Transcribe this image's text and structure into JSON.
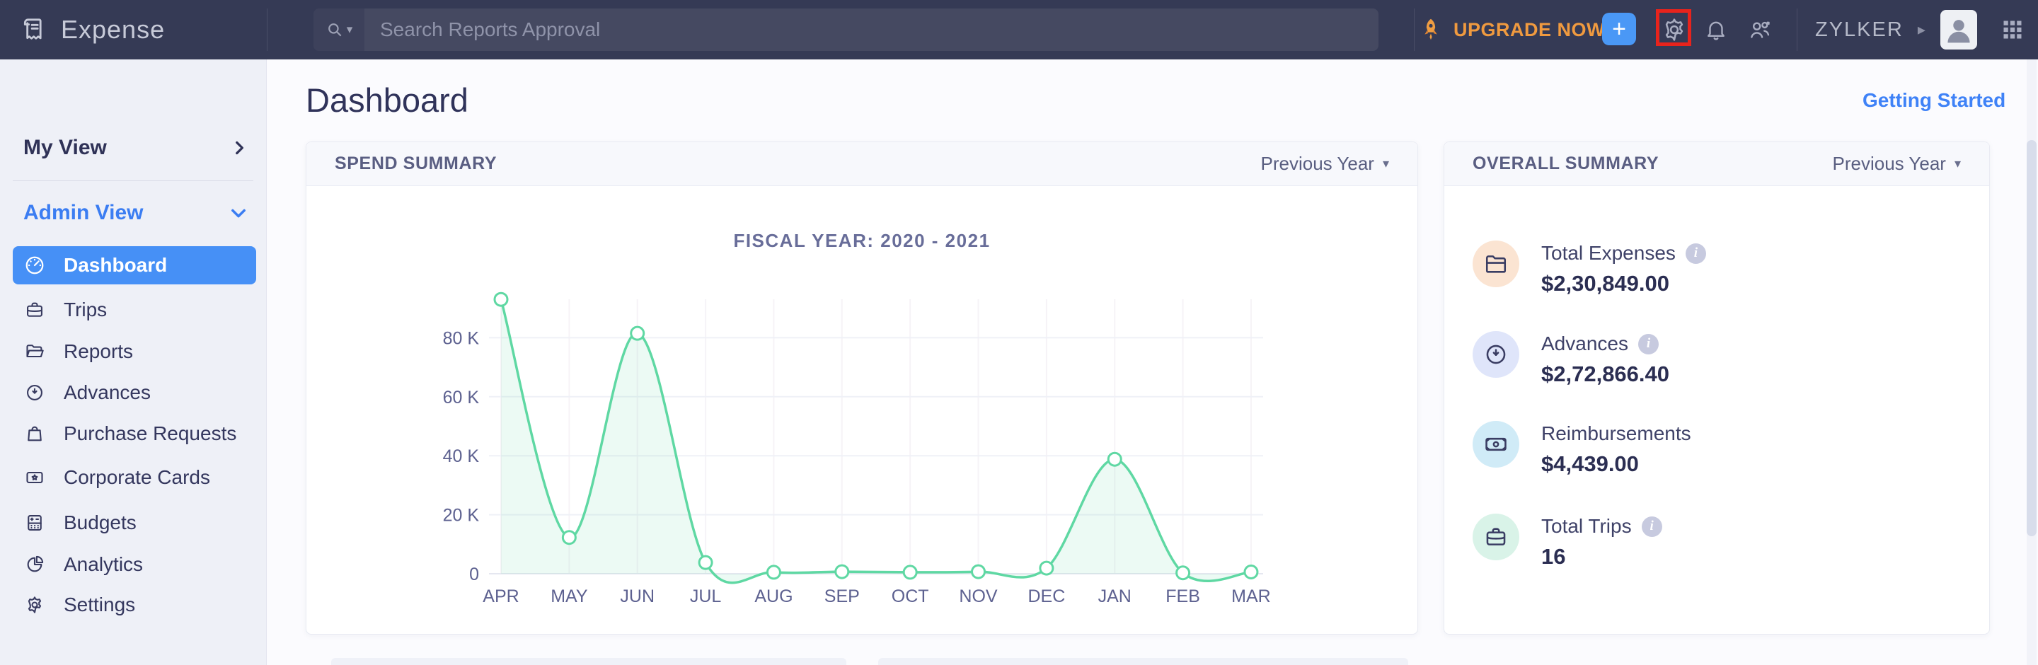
{
  "topbar": {
    "brand": "Expense",
    "search_placeholder": "Search Reports Approval",
    "upgrade_label": "UPGRADE NOW",
    "org_name": "ZYLKER"
  },
  "icons": {
    "caret_down_glyph": "▾",
    "chevron_right_glyph": "▸",
    "plus_glyph": "+",
    "info_glyph": "i"
  },
  "sidebar": {
    "sections": [
      {
        "label": "My View"
      },
      {
        "label": "Admin View"
      }
    ],
    "items": [
      {
        "label": "Dashboard",
        "icon": "dashboard-icon",
        "active": true
      },
      {
        "label": "Trips",
        "icon": "briefcase-icon",
        "active": false
      },
      {
        "label": "Reports",
        "icon": "folder-icon",
        "active": false
      },
      {
        "label": "Advances",
        "icon": "clock-icon",
        "active": false
      },
      {
        "label": "Purchase Requests",
        "icon": "shopping-bag-icon",
        "active": false
      },
      {
        "label": "Corporate Cards",
        "icon": "card-star-icon",
        "active": false
      },
      {
        "label": "Budgets",
        "icon": "budget-icon",
        "active": false
      },
      {
        "label": "Analytics",
        "icon": "pie-chart-icon",
        "active": false
      },
      {
        "label": "Settings",
        "icon": "gear-icon",
        "active": false
      }
    ]
  },
  "page": {
    "title": "Dashboard",
    "getting_started": "Getting Started"
  },
  "spend_summary": {
    "title": "SPEND SUMMARY",
    "filter": "Previous Year"
  },
  "overall_summary": {
    "title": "OVERALL SUMMARY",
    "filter": "Previous Year",
    "items": [
      {
        "label": "Total Expenses",
        "value": "$2,30,849.00",
        "info": true,
        "icon": "folder-icon",
        "circle_color": "#fbe4d2"
      },
      {
        "label": "Advances",
        "value": "$2,72,866.40",
        "info": true,
        "icon": "clock-icon",
        "circle_color": "#dfe5fa"
      },
      {
        "label": "Reimbursements",
        "value": "$4,439.00",
        "info": false,
        "icon": "banknote-icon",
        "circle_color": "#d0ebf7"
      },
      {
        "label": "Total Trips",
        "value": "16",
        "info": true,
        "icon": "briefcase-icon",
        "circle_color": "#d9f3e8"
      }
    ]
  },
  "chart_data": {
    "type": "area",
    "title": "FISCAL YEAR: 2020 - 2021",
    "categories": [
      "APR",
      "MAY",
      "JUN",
      "JUL",
      "AUG",
      "SEP",
      "OCT",
      "NOV",
      "DEC",
      "JAN",
      "FEB",
      "MAR"
    ],
    "values": [
      93000,
      12300,
      81500,
      3800,
      500,
      700,
      500,
      700,
      1900,
      38800,
      300,
      600
    ],
    "y_ticks": [
      0,
      20000,
      40000,
      60000,
      80000
    ],
    "y_tick_labels": [
      "0",
      "20 K",
      "40 K",
      "60 K",
      "80 K"
    ],
    "ylim": [
      0,
      95000
    ],
    "grid": true,
    "legend": "none",
    "line_color": "#5fd8a3",
    "fill_color": "rgba(95,216,163,0.12)",
    "marker": "circle"
  }
}
